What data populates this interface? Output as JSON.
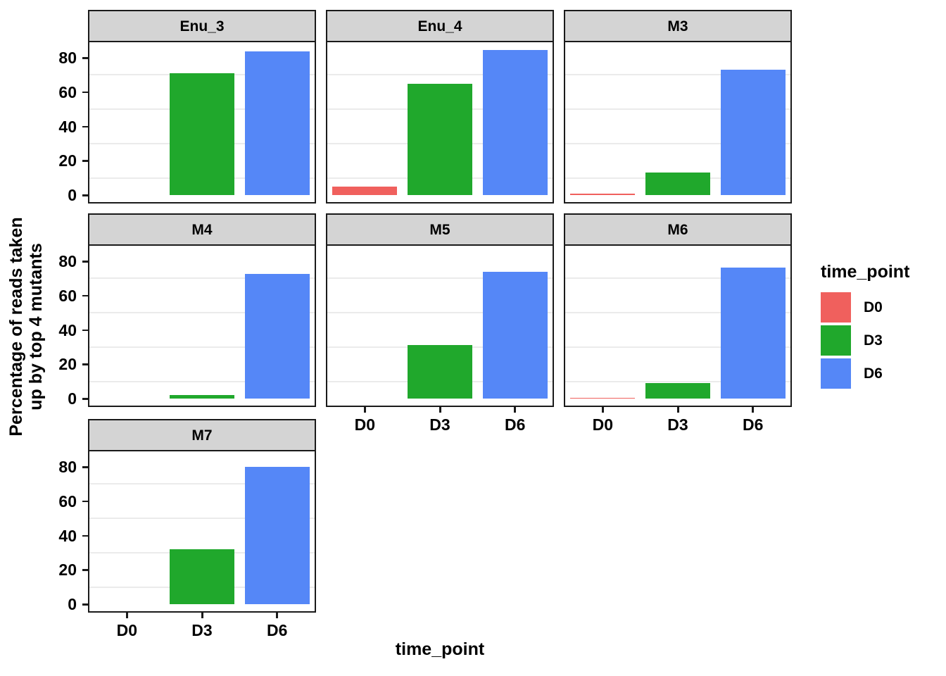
{
  "axes": {
    "y_title_line1": "Percentage of reads taken",
    "y_title_line2": "up by top 4 mutants",
    "x_title": "time_point",
    "y_tick_labels": [
      "0",
      "20",
      "40",
      "60",
      "80"
    ],
    "x_tick_labels": [
      "D0",
      "D3",
      "D6"
    ]
  },
  "legend": {
    "title": "time_point",
    "entries": [
      {
        "label": "D0",
        "color": "#f0605d"
      },
      {
        "label": "D3",
        "color": "#20a82c"
      },
      {
        "label": "D6",
        "color": "#5587f7"
      }
    ]
  },
  "chart_data": {
    "type": "bar",
    "faceted": true,
    "facet_titles": [
      "Enu_3",
      "Enu_4",
      "M3",
      "M4",
      "M5",
      "M6",
      "M7"
    ],
    "categories": [
      "D0",
      "D3",
      "D6"
    ],
    "series_colors": {
      "D0": "#f0605d",
      "D3": "#20a82c",
      "D6": "#5587f7"
    },
    "facets": [
      {
        "name": "Enu_3",
        "values": [
          0,
          71,
          83.5
        ]
      },
      {
        "name": "Enu_4",
        "values": [
          5,
          65,
          84.5
        ]
      },
      {
        "name": "M3",
        "values": [
          1,
          13,
          73
        ]
      },
      {
        "name": "M4",
        "values": [
          0,
          2,
          72.5
        ]
      },
      {
        "name": "M5",
        "values": [
          0,
          31,
          74
        ]
      },
      {
        "name": "M6",
        "values": [
          0.5,
          9,
          76.5
        ]
      },
      {
        "name": "M7",
        "values": [
          0,
          32,
          80
        ]
      }
    ],
    "xlabel": "time_point",
    "ylabel": "Percentage of reads taken up by top 4 mutants",
    "ylim": [
      0,
      90
    ],
    "y_ticks": [
      0,
      20,
      40,
      60,
      80
    ],
    "grid": "minor gridlines only at 10,30,50,70",
    "legend_title": "time_point",
    "legend_position": "right"
  }
}
